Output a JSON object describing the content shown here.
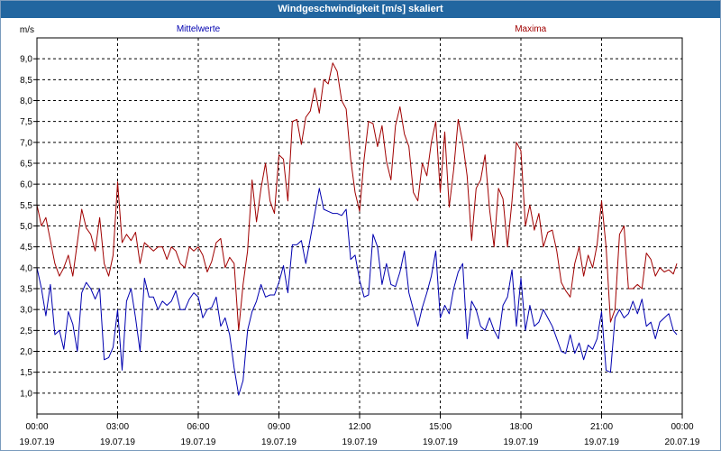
{
  "window": {
    "title": "Windgeschwindigkeit [m/s] skaliert"
  },
  "chart_data": {
    "type": "line",
    "title": "Windgeschwindigkeit [m/s] skaliert",
    "ylabel": "m/s",
    "xlabel": "",
    "ylim": [
      0.5,
      9.5
    ],
    "xlim_hours": [
      0,
      24
    ],
    "grid": true,
    "legend_placement": "top",
    "y_ticks": [
      {
        "value": 1.0,
        "label": "1,0"
      },
      {
        "value": 1.5,
        "label": "1,5"
      },
      {
        "value": 2.0,
        "label": "2,0"
      },
      {
        "value": 2.5,
        "label": "2,5"
      },
      {
        "value": 3.0,
        "label": "3,0"
      },
      {
        "value": 3.5,
        "label": "3,5"
      },
      {
        "value": 4.0,
        "label": "4,0"
      },
      {
        "value": 4.5,
        "label": "4,5"
      },
      {
        "value": 5.0,
        "label": "5,0"
      },
      {
        "value": 5.5,
        "label": "5,5"
      },
      {
        "value": 6.0,
        "label": "6,0"
      },
      {
        "value": 6.5,
        "label": "6,5"
      },
      {
        "value": 7.0,
        "label": "7,0"
      },
      {
        "value": 7.5,
        "label": "7,5"
      },
      {
        "value": 8.0,
        "label": "8,0"
      },
      {
        "value": 8.5,
        "label": "8,5"
      },
      {
        "value": 9.0,
        "label": "9,0"
      }
    ],
    "x_ticks": [
      {
        "hours": 0,
        "time": "00:00",
        "date": "19.07.19"
      },
      {
        "hours": 3,
        "time": "03:00",
        "date": "19.07.19"
      },
      {
        "hours": 6,
        "time": "06:00",
        "date": "19.07.19"
      },
      {
        "hours": 9,
        "time": "09:00",
        "date": "19.07.19"
      },
      {
        "hours": 12,
        "time": "12:00",
        "date": "19.07.19"
      },
      {
        "hours": 15,
        "time": "15:00",
        "date": "19.07.19"
      },
      {
        "hours": 18,
        "time": "18:00",
        "date": "19.07.19"
      },
      {
        "hours": 21,
        "time": "21:00",
        "date": "19.07.19"
      },
      {
        "hours": 24,
        "time": "00:00",
        "date": "20.07.19"
      }
    ],
    "series": [
      {
        "name": "Mittelwerte",
        "color": "#0000b0",
        "values": [
          [
            0,
            4.0
          ],
          [
            0.167,
            3.5
          ],
          [
            0.333,
            2.85
          ],
          [
            0.5,
            3.6
          ],
          [
            0.667,
            2.4
          ],
          [
            0.833,
            2.5
          ],
          [
            1.0,
            2.05
          ],
          [
            1.167,
            2.95
          ],
          [
            1.333,
            2.65
          ],
          [
            1.5,
            2.0
          ],
          [
            1.667,
            3.4
          ],
          [
            1.833,
            3.65
          ],
          [
            2.0,
            3.5
          ],
          [
            2.167,
            3.25
          ],
          [
            2.333,
            3.5
          ],
          [
            2.5,
            1.8
          ],
          [
            2.667,
            1.85
          ],
          [
            2.833,
            2.1
          ],
          [
            3.0,
            3.0
          ],
          [
            3.167,
            1.55
          ],
          [
            3.333,
            3.2
          ],
          [
            3.5,
            3.5
          ],
          [
            3.667,
            2.8
          ],
          [
            3.833,
            2.0
          ],
          [
            4.0,
            3.75
          ],
          [
            4.167,
            3.3
          ],
          [
            4.333,
            3.3
          ],
          [
            4.5,
            3.0
          ],
          [
            4.667,
            3.2
          ],
          [
            4.833,
            3.1
          ],
          [
            5.0,
            3.2
          ],
          [
            5.167,
            3.45
          ],
          [
            5.333,
            3.0
          ],
          [
            5.5,
            3.0
          ],
          [
            5.667,
            3.25
          ],
          [
            5.833,
            3.4
          ],
          [
            6.0,
            3.3
          ],
          [
            6.167,
            2.8
          ],
          [
            6.333,
            3.0
          ],
          [
            6.5,
            3.05
          ],
          [
            6.667,
            3.3
          ],
          [
            6.833,
            2.6
          ],
          [
            7.0,
            2.8
          ],
          [
            7.167,
            2.4
          ],
          [
            7.333,
            1.6
          ],
          [
            7.5,
            0.95
          ],
          [
            7.667,
            1.3
          ],
          [
            7.833,
            2.5
          ],
          [
            8.0,
            2.95
          ],
          [
            8.167,
            3.2
          ],
          [
            8.333,
            3.6
          ],
          [
            8.5,
            3.3
          ],
          [
            8.667,
            3.35
          ],
          [
            8.833,
            3.35
          ],
          [
            9.0,
            3.65
          ],
          [
            9.167,
            4.05
          ],
          [
            9.333,
            3.4
          ],
          [
            9.5,
            4.55
          ],
          [
            9.667,
            4.55
          ],
          [
            9.833,
            4.65
          ],
          [
            10.0,
            4.1
          ],
          [
            10.167,
            4.7
          ],
          [
            10.333,
            5.3
          ],
          [
            10.5,
            5.9
          ],
          [
            10.667,
            5.4
          ],
          [
            10.833,
            5.35
          ],
          [
            11.0,
            5.3
          ],
          [
            11.167,
            5.3
          ],
          [
            11.333,
            5.25
          ],
          [
            11.5,
            5.4
          ],
          [
            11.667,
            4.2
          ],
          [
            11.833,
            4.3
          ],
          [
            12.0,
            3.7
          ],
          [
            12.167,
            3.3
          ],
          [
            12.333,
            3.35
          ],
          [
            12.5,
            4.8
          ],
          [
            12.667,
            4.5
          ],
          [
            12.833,
            3.6
          ],
          [
            13.0,
            4.1
          ],
          [
            13.167,
            3.6
          ],
          [
            13.333,
            3.55
          ],
          [
            13.5,
            3.9
          ],
          [
            13.667,
            4.4
          ],
          [
            13.833,
            3.4
          ],
          [
            14.0,
            3.0
          ],
          [
            14.167,
            2.6
          ],
          [
            14.333,
            3.05
          ],
          [
            14.5,
            3.4
          ],
          [
            14.667,
            3.8
          ],
          [
            14.833,
            4.4
          ],
          [
            15.0,
            2.8
          ],
          [
            15.167,
            3.1
          ],
          [
            15.333,
            2.9
          ],
          [
            15.5,
            3.5
          ],
          [
            15.667,
            3.9
          ],
          [
            15.833,
            4.1
          ],
          [
            16.0,
            2.3
          ],
          [
            16.167,
            3.2
          ],
          [
            16.333,
            3.0
          ],
          [
            16.5,
            2.6
          ],
          [
            16.667,
            2.5
          ],
          [
            16.833,
            2.8
          ],
          [
            17.0,
            2.5
          ],
          [
            17.167,
            2.3
          ],
          [
            17.333,
            3.1
          ],
          [
            17.5,
            3.3
          ],
          [
            17.667,
            3.95
          ],
          [
            17.833,
            2.6
          ],
          [
            18.0,
            3.75
          ],
          [
            18.167,
            2.5
          ],
          [
            18.333,
            3.1
          ],
          [
            18.5,
            2.6
          ],
          [
            18.667,
            2.7
          ],
          [
            18.833,
            3.0
          ],
          [
            19.0,
            2.8
          ],
          [
            19.167,
            2.6
          ],
          [
            19.333,
            2.3
          ],
          [
            19.5,
            2.0
          ],
          [
            19.667,
            1.95
          ],
          [
            19.833,
            2.4
          ],
          [
            20.0,
            1.95
          ],
          [
            20.167,
            2.2
          ],
          [
            20.333,
            1.8
          ],
          [
            20.5,
            2.15
          ],
          [
            20.667,
            2.05
          ],
          [
            20.833,
            2.3
          ],
          [
            21.0,
            2.95
          ],
          [
            21.167,
            1.55
          ],
          [
            21.333,
            1.5
          ],
          [
            21.5,
            2.8
          ],
          [
            21.667,
            3.0
          ],
          [
            21.833,
            2.8
          ],
          [
            22.0,
            2.9
          ],
          [
            22.167,
            3.2
          ],
          [
            22.333,
            2.9
          ],
          [
            22.5,
            3.25
          ],
          [
            22.667,
            2.6
          ],
          [
            22.833,
            2.7
          ],
          [
            23.0,
            2.3
          ],
          [
            23.167,
            2.7
          ],
          [
            23.333,
            2.8
          ],
          [
            23.5,
            2.9
          ],
          [
            23.667,
            2.5
          ],
          [
            23.8,
            2.4
          ]
        ]
      },
      {
        "name": "Maxima",
        "color": "#a00000",
        "values": [
          [
            0,
            5.5
          ],
          [
            0.167,
            5.0
          ],
          [
            0.333,
            5.2
          ],
          [
            0.5,
            4.65
          ],
          [
            0.667,
            4.1
          ],
          [
            0.833,
            3.8
          ],
          [
            1.0,
            4.0
          ],
          [
            1.167,
            4.3
          ],
          [
            1.333,
            3.8
          ],
          [
            1.5,
            4.6
          ],
          [
            1.667,
            5.4
          ],
          [
            1.833,
            4.95
          ],
          [
            2.0,
            4.8
          ],
          [
            2.167,
            4.4
          ],
          [
            2.333,
            5.2
          ],
          [
            2.5,
            4.1
          ],
          [
            2.667,
            3.8
          ],
          [
            2.833,
            4.3
          ],
          [
            3.0,
            6.05
          ],
          [
            3.167,
            4.6
          ],
          [
            3.333,
            4.8
          ],
          [
            3.5,
            4.65
          ],
          [
            3.667,
            4.85
          ],
          [
            3.833,
            4.1
          ],
          [
            4.0,
            4.6
          ],
          [
            4.167,
            4.5
          ],
          [
            4.333,
            4.4
          ],
          [
            4.5,
            4.5
          ],
          [
            4.667,
            4.5
          ],
          [
            4.833,
            4.2
          ],
          [
            5.0,
            4.5
          ],
          [
            5.167,
            4.4
          ],
          [
            5.333,
            4.1
          ],
          [
            5.5,
            4.0
          ],
          [
            5.667,
            4.5
          ],
          [
            5.833,
            4.4
          ],
          [
            6.0,
            4.5
          ],
          [
            6.167,
            4.3
          ],
          [
            6.333,
            3.9
          ],
          [
            6.5,
            4.15
          ],
          [
            6.667,
            4.6
          ],
          [
            6.833,
            4.7
          ],
          [
            7.0,
            4.0
          ],
          [
            7.167,
            4.25
          ],
          [
            7.333,
            4.1
          ],
          [
            7.5,
            2.5
          ],
          [
            7.667,
            3.6
          ],
          [
            7.833,
            4.4
          ],
          [
            8.0,
            6.1
          ],
          [
            8.167,
            5.1
          ],
          [
            8.333,
            5.9
          ],
          [
            8.5,
            6.5
          ],
          [
            8.667,
            5.6
          ],
          [
            8.833,
            5.3
          ],
          [
            9.0,
            6.7
          ],
          [
            9.167,
            6.6
          ],
          [
            9.333,
            5.6
          ],
          [
            9.5,
            7.5
          ],
          [
            9.667,
            7.55
          ],
          [
            9.833,
            6.95
          ],
          [
            10.0,
            7.6
          ],
          [
            10.167,
            7.75
          ],
          [
            10.333,
            8.3
          ],
          [
            10.5,
            7.7
          ],
          [
            10.667,
            8.5
          ],
          [
            10.833,
            8.4
          ],
          [
            11.0,
            8.9
          ],
          [
            11.167,
            8.7
          ],
          [
            11.333,
            8.0
          ],
          [
            11.5,
            7.8
          ],
          [
            11.667,
            6.6
          ],
          [
            11.833,
            5.8
          ],
          [
            12.0,
            5.35
          ],
          [
            12.167,
            6.6
          ],
          [
            12.333,
            7.5
          ],
          [
            12.5,
            7.45
          ],
          [
            12.667,
            6.9
          ],
          [
            12.833,
            7.4
          ],
          [
            13.0,
            6.55
          ],
          [
            13.167,
            6.1
          ],
          [
            13.333,
            7.4
          ],
          [
            13.5,
            7.85
          ],
          [
            13.667,
            7.2
          ],
          [
            13.833,
            6.9
          ],
          [
            14.0,
            5.8
          ],
          [
            14.167,
            5.6
          ],
          [
            14.333,
            6.5
          ],
          [
            14.5,
            6.2
          ],
          [
            14.667,
            7.0
          ],
          [
            14.833,
            7.5
          ],
          [
            15.0,
            5.8
          ],
          [
            15.167,
            7.25
          ],
          [
            15.333,
            5.45
          ],
          [
            15.5,
            6.35
          ],
          [
            15.667,
            7.55
          ],
          [
            15.833,
            7.0
          ],
          [
            16.0,
            6.2
          ],
          [
            16.167,
            4.65
          ],
          [
            16.333,
            5.9
          ],
          [
            16.5,
            6.1
          ],
          [
            16.667,
            6.7
          ],
          [
            16.833,
            5.4
          ],
          [
            17.0,
            4.5
          ],
          [
            17.167,
            5.9
          ],
          [
            17.333,
            5.65
          ],
          [
            17.5,
            4.5
          ],
          [
            17.667,
            5.6
          ],
          [
            17.833,
            7.0
          ],
          [
            18.0,
            6.8
          ],
          [
            18.167,
            5.0
          ],
          [
            18.333,
            5.5
          ],
          [
            18.5,
            4.9
          ],
          [
            18.667,
            5.3
          ],
          [
            18.833,
            4.5
          ],
          [
            19.0,
            4.85
          ],
          [
            19.167,
            4.9
          ],
          [
            19.333,
            4.4
          ],
          [
            19.5,
            3.65
          ],
          [
            19.667,
            3.45
          ],
          [
            19.833,
            3.3
          ],
          [
            20.0,
            4.1
          ],
          [
            20.167,
            4.5
          ],
          [
            20.333,
            3.8
          ],
          [
            20.5,
            4.3
          ],
          [
            20.667,
            4.0
          ],
          [
            20.833,
            4.55
          ],
          [
            21.0,
            5.6
          ],
          [
            21.167,
            4.5
          ],
          [
            21.333,
            2.7
          ],
          [
            21.5,
            3.0
          ],
          [
            21.667,
            4.8
          ],
          [
            21.833,
            5.0
          ],
          [
            22.0,
            3.5
          ],
          [
            22.167,
            3.5
          ],
          [
            22.333,
            3.6
          ],
          [
            22.5,
            3.5
          ],
          [
            22.667,
            4.35
          ],
          [
            22.833,
            4.2
          ],
          [
            23.0,
            3.8
          ],
          [
            23.167,
            4.0
          ],
          [
            23.333,
            3.9
          ],
          [
            23.5,
            3.95
          ],
          [
            23.667,
            3.85
          ],
          [
            23.8,
            4.1
          ]
        ]
      }
    ]
  }
}
